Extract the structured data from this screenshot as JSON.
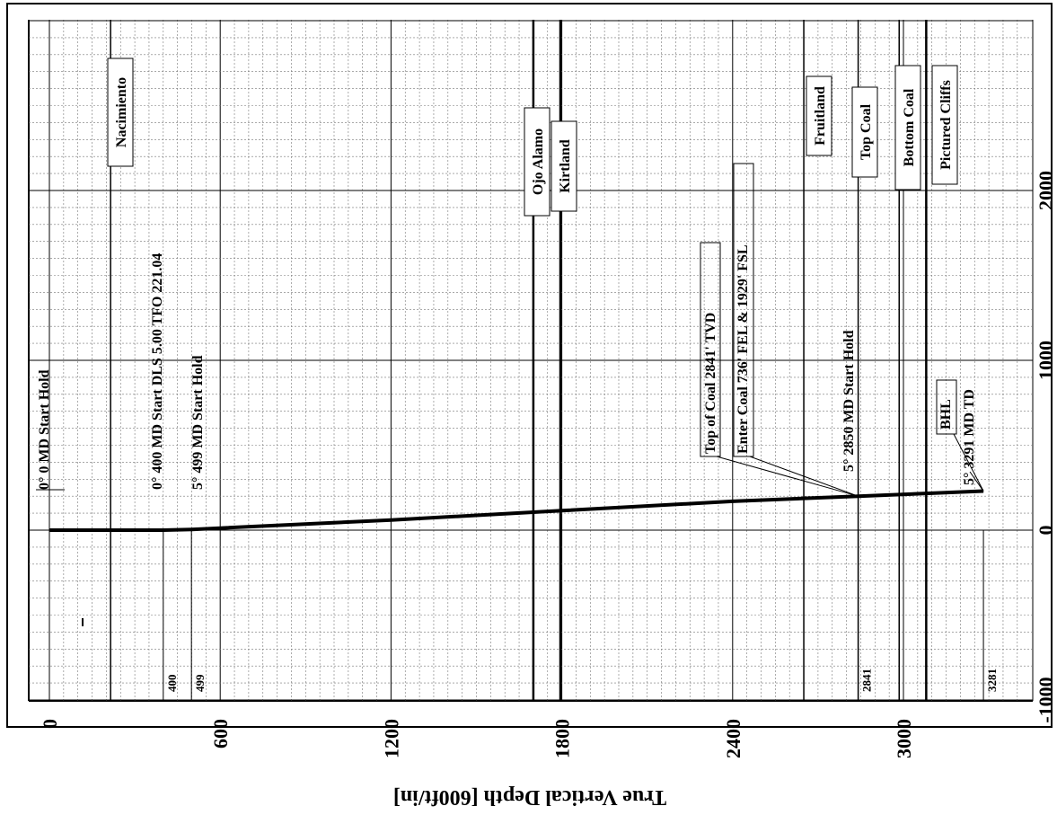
{
  "chart_data": {
    "type": "line",
    "title": "",
    "ylabel": "True Vertical Depth [600ft/in]",
    "xlabel": "",
    "tvd_ticks": [
      "0",
      "600",
      "1200",
      "1800",
      "2400",
      "3000"
    ],
    "offset_ticks": [
      "-1000",
      "0",
      "1000",
      "2000"
    ],
    "tvd_range": [
      0,
      3400
    ],
    "offset_range": [
      -1050,
      3000
    ],
    "grid": true,
    "well_path": {
      "tvd": [
        0,
        400,
        499,
        600,
        1200,
        1800,
        2400,
        2841,
        3281
      ],
      "offset": [
        0,
        0,
        4,
        12,
        60,
        115,
        170,
        200,
        230
      ]
    },
    "formations": [
      {
        "name": "Nacimiento",
        "tvd": 215
      },
      {
        "name": "Ojo Alamo",
        "tvd": 1700
      },
      {
        "name": "Kirtland",
        "tvd": 1795
      },
      {
        "name": "Fruitland",
        "tvd": 2650
      },
      {
        "name": "Top Coal",
        "tvd": 2841
      },
      {
        "name": "Bottom Coal",
        "tvd": 2985
      },
      {
        "name": "Pictured Cliffs",
        "tvd": 3080
      }
    ],
    "annotations": [
      "0° 0 MD Start Hold",
      "0° 400 MD Start DLS 5.00 TFO 221.04",
      "5° 499 MD Start Hold",
      "Top of Coal 2841' TVD",
      "Enter Coal 736' FEL & 1929' FSL",
      "5° 2850 MD Start Hold",
      "BHL",
      "5° 3291 MD TD"
    ],
    "marker_labels": [
      "400",
      "499",
      "2841",
      "3281"
    ]
  }
}
